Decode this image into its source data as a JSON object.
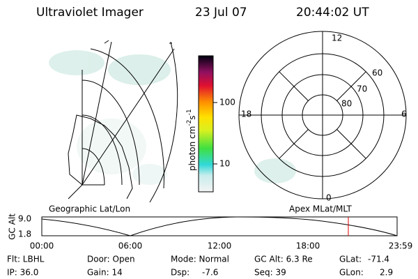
{
  "header": {
    "title": "Ultraviolet Imager",
    "date": "23 Jul 07",
    "time": "20:44:02 UT"
  },
  "map": {
    "label": "Geographic Lat/Lon"
  },
  "colorbar": {
    "label": {
      "unit1": "photon cm",
      "exp1": "-2",
      "unit2": "s",
      "exp2": "-1"
    },
    "ticks": [
      "100",
      "10"
    ]
  },
  "polar": {
    "label": "Apex MLat/MLT",
    "hours": [
      "12",
      "18",
      "6",
      "0"
    ],
    "lats": [
      "60",
      "70",
      "80"
    ]
  },
  "altitude": {
    "label": "GC Alt",
    "yticks": [
      "9.0",
      "1.8"
    ],
    "xticks": [
      "00:00",
      "06:00",
      "12:00",
      "18:00",
      "23:59"
    ]
  },
  "footer": {
    "row1": [
      "Flt: LBHL",
      "Door: Open",
      "Mode: Normal",
      "GC Alt: 6.3 Re",
      "GLat:",
      "-71.4"
    ],
    "row2": [
      "IP: 36.0",
      "Gain: 14",
      "Dsp:",
      "-7.6",
      "Seq: 39",
      "GLon:",
      "2.9"
    ]
  }
}
